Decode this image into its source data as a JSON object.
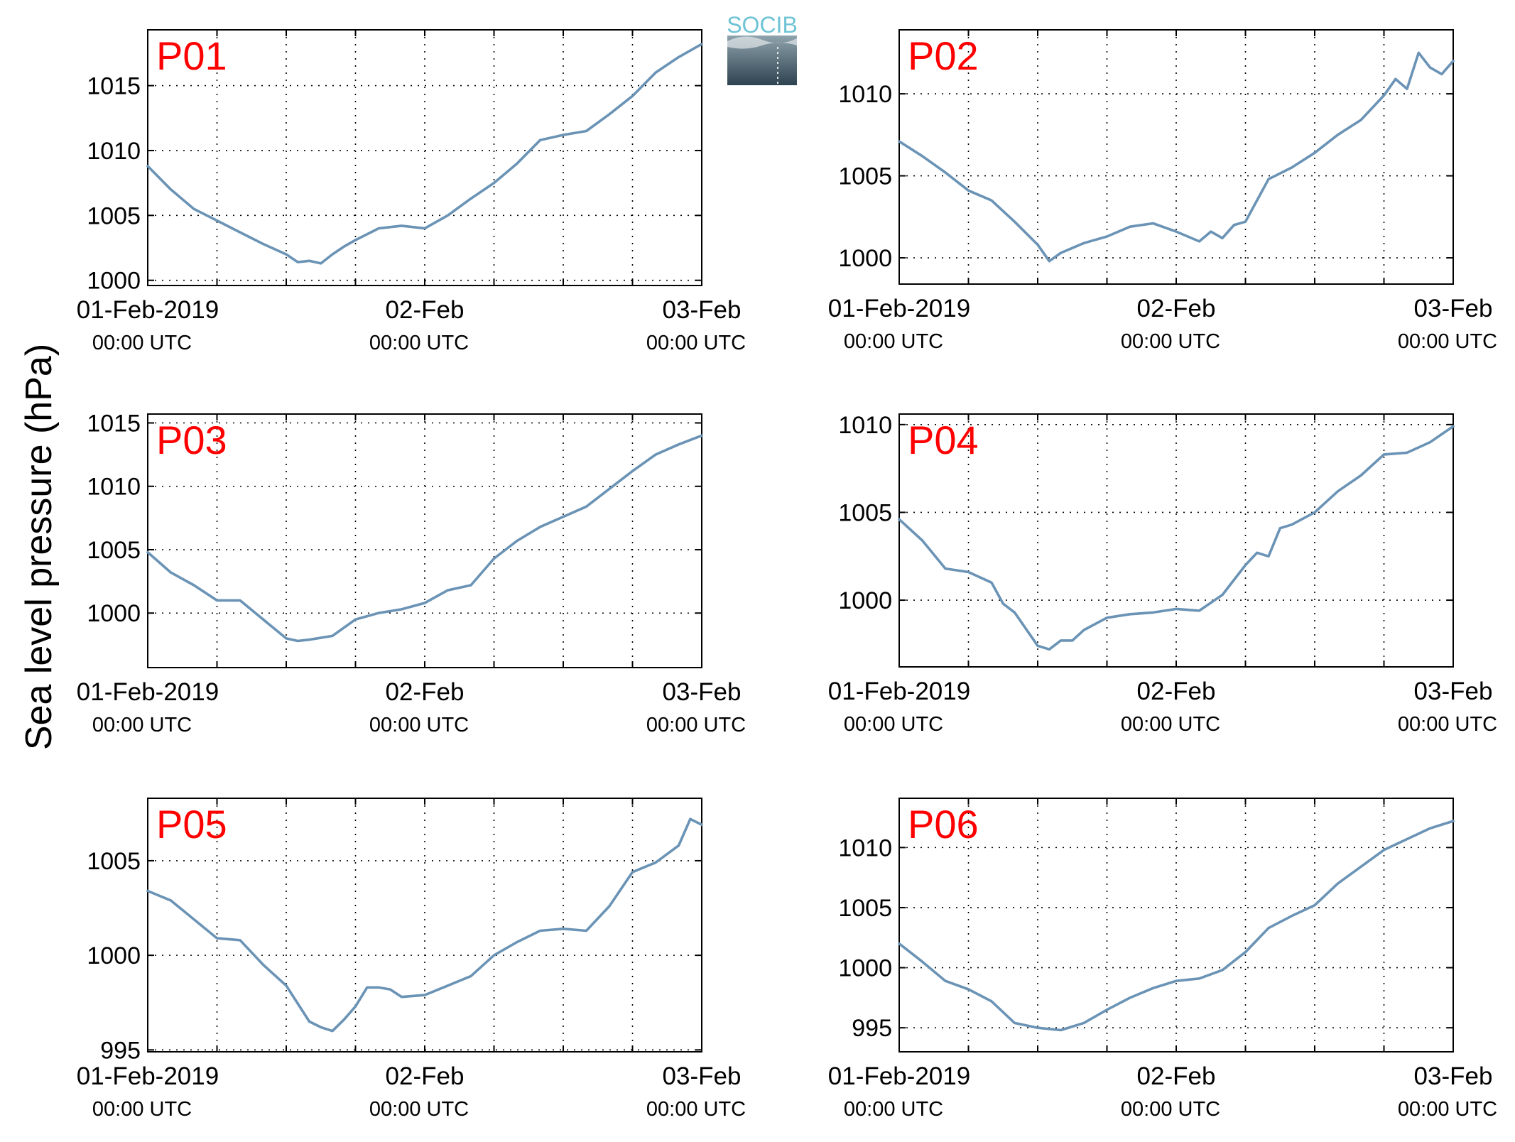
{
  "ylabel": "Sea level pressure (hPa)",
  "logo": {
    "text": "SOCIB",
    "text_color": "#6ec3d5",
    "grad_top": "#8fa3ad",
    "grad_bottom": "#2e4350"
  },
  "colors": {
    "line": "#6a93b5",
    "label": "#ff0000",
    "grid": "#000000"
  },
  "chart_data": [
    {
      "type": "line",
      "label": "P01",
      "xlabels": [
        {
          "date": "01-Feb-2019",
          "time": "00:00 UTC"
        },
        {
          "date": "02-Feb",
          "time": "00:00 UTC"
        },
        {
          "date": "03-Feb",
          "time": "00:00 UTC"
        }
      ],
      "x_hours": [
        0,
        2,
        4,
        6,
        8,
        10,
        12,
        13,
        14,
        15,
        16,
        17,
        18,
        20,
        22,
        24,
        26,
        28,
        30,
        32,
        34,
        36,
        38,
        40,
        42,
        44,
        46,
        48
      ],
      "values": [
        1008.8,
        1007.0,
        1005.5,
        1004.6,
        1003.7,
        1002.8,
        1002.0,
        1001.4,
        1001.5,
        1001.3,
        1002.0,
        1002.6,
        1003.1,
        1004.0,
        1004.2,
        1004.0,
        1005.0,
        1006.3,
        1007.5,
        1009.0,
        1010.8,
        1011.2,
        1011.5,
        1012.8,
        1014.2,
        1016.0,
        1017.2,
        1018.2
      ],
      "yticks": [
        1000,
        1005,
        1010,
        1015
      ],
      "ylim": [
        999.6,
        1019.3
      ],
      "grid": true
    },
    {
      "type": "line",
      "label": "P02",
      "xlabels": [
        {
          "date": "01-Feb-2019",
          "time": "00:00 UTC"
        },
        {
          "date": "02-Feb",
          "time": "00:00 UTC"
        },
        {
          "date": "03-Feb",
          "time": "00:00 UTC"
        }
      ],
      "x_hours": [
        0,
        2,
        4,
        6,
        8,
        10,
        12,
        13,
        14,
        15,
        16,
        18,
        20,
        22,
        24,
        26,
        27,
        28,
        29,
        30,
        32,
        34,
        36,
        38,
        40,
        42,
        43,
        44,
        45,
        46,
        47,
        48
      ],
      "values": [
        1007.1,
        1006.2,
        1005.2,
        1004.1,
        1003.5,
        1002.2,
        1000.8,
        999.8,
        1000.3,
        1000.6,
        1000.9,
        1001.3,
        1001.9,
        1002.1,
        1001.6,
        1001.0,
        1001.6,
        1001.2,
        1002.0,
        1002.2,
        1004.8,
        1005.5,
        1006.4,
        1007.5,
        1008.4,
        1009.9,
        1010.9,
        1010.3,
        1012.5,
        1011.6,
        1011.2,
        1012.0
      ],
      "yticks": [
        1000,
        1005,
        1010
      ],
      "ylim": [
        998.4,
        1013.9
      ],
      "grid": true
    },
    {
      "type": "line",
      "label": "P03",
      "xlabels": [
        {
          "date": "01-Feb-2019",
          "time": "00:00 UTC"
        },
        {
          "date": "02-Feb",
          "time": "00:00 UTC"
        },
        {
          "date": "03-Feb",
          "time": "00:00 UTC"
        }
      ],
      "x_hours": [
        0,
        2,
        4,
        6,
        8,
        10,
        12,
        13,
        14,
        16,
        18,
        20,
        22,
        24,
        26,
        28,
        30,
        32,
        34,
        36,
        38,
        40,
        42,
        44,
        46,
        48
      ],
      "values": [
        1004.8,
        1003.2,
        1002.2,
        1001.0,
        1001.0,
        999.5,
        998.0,
        997.8,
        997.9,
        998.2,
        999.5,
        1000.0,
        1000.3,
        1000.8,
        1001.8,
        1002.2,
        1004.3,
        1005.7,
        1006.8,
        1007.6,
        1008.4,
        1009.8,
        1011.2,
        1012.5,
        1013.3,
        1014.0
      ],
      "yticks": [
        1000,
        1005,
        1010,
        1015
      ],
      "ylim": [
        995.7,
        1015.7
      ],
      "grid": true
    },
    {
      "type": "line",
      "label": "P04",
      "xlabels": [
        {
          "date": "01-Feb-2019",
          "time": "00:00 UTC"
        },
        {
          "date": "02-Feb",
          "time": "00:00 UTC"
        },
        {
          "date": "03-Feb",
          "time": "00:00 UTC"
        }
      ],
      "x_hours": [
        0,
        2,
        4,
        6,
        8,
        9,
        10,
        12,
        13,
        14,
        15,
        16,
        18,
        20,
        22,
        24,
        26,
        28,
        30,
        31,
        32,
        33,
        34,
        36,
        38,
        40,
        42,
        44,
        46,
        48
      ],
      "values": [
        1004.6,
        1003.4,
        1001.8,
        1001.6,
        1001.0,
        999.8,
        999.3,
        997.4,
        997.2,
        997.7,
        997.7,
        998.3,
        999.0,
        999.2,
        999.3,
        999.5,
        999.4,
        1000.3,
        1002.0,
        1002.7,
        1002.5,
        1004.1,
        1004.3,
        1005.0,
        1006.2,
        1007.1,
        1008.3,
        1008.4,
        1009.0,
        1009.9
      ],
      "yticks": [
        1000,
        1005,
        1010
      ],
      "ylim": [
        996.2,
        1010.6
      ],
      "grid": true
    },
    {
      "type": "line",
      "label": "P05",
      "xlabels": [
        {
          "date": "01-Feb-2019",
          "time": "00:00 UTC"
        },
        {
          "date": "02-Feb",
          "time": "00:00 UTC"
        },
        {
          "date": "03-Feb",
          "time": "00:00 UTC"
        }
      ],
      "x_hours": [
        0,
        2,
        4,
        6,
        8,
        10,
        12,
        14,
        15,
        16,
        17,
        18,
        19,
        20,
        21,
        22,
        24,
        26,
        28,
        30,
        32,
        34,
        36,
        38,
        40,
        42,
        44,
        46,
        47,
        48
      ],
      "values": [
        1003.4,
        1002.9,
        1001.9,
        1000.9,
        1000.8,
        999.5,
        998.4,
        996.5,
        996.2,
        996.0,
        996.6,
        997.3,
        998.3,
        998.3,
        998.2,
        997.8,
        997.9,
        998.4,
        998.9,
        1000.0,
        1000.7,
        1001.3,
        1001.4,
        1001.3,
        1002.6,
        1004.4,
        1004.9,
        1005.8,
        1007.2,
        1006.9
      ],
      "yticks": [
        995,
        1000,
        1005
      ],
      "ylim": [
        994.9,
        1008.3
      ],
      "grid": true
    },
    {
      "type": "line",
      "label": "P06",
      "xlabels": [
        {
          "date": "01-Feb-2019",
          "time": "00:00 UTC"
        },
        {
          "date": "02-Feb",
          "time": "00:00 UTC"
        },
        {
          "date": "03-Feb",
          "time": "00:00 UTC"
        }
      ],
      "x_hours": [
        0,
        2,
        4,
        6,
        8,
        10,
        12,
        14,
        16,
        18,
        20,
        22,
        24,
        26,
        28,
        30,
        32,
        34,
        36,
        38,
        40,
        42,
        44,
        46,
        48
      ],
      "values": [
        1002.0,
        1000.5,
        998.9,
        998.2,
        997.2,
        995.4,
        995.0,
        994.8,
        995.4,
        996.5,
        997.5,
        998.3,
        998.9,
        999.1,
        999.8,
        1001.3,
        1003.3,
        1004.3,
        1005.2,
        1007.0,
        1008.4,
        1009.8,
        1010.7,
        1011.6,
        1012.2
      ],
      "yticks": [
        995,
        1000,
        1005,
        1010
      ],
      "ylim": [
        993.0,
        1014.1
      ],
      "grid": true
    }
  ]
}
